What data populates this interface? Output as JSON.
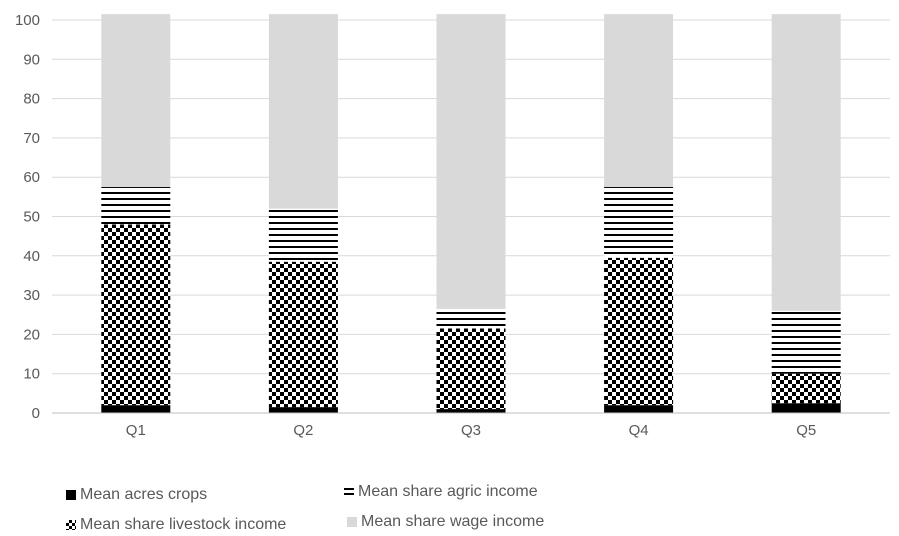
{
  "chart_data": {
    "type": "bar",
    "stacked": true,
    "categories": [
      "Q1",
      "Q2",
      "Q3",
      "Q4",
      "Q5"
    ],
    "ylim": [
      0,
      100
    ],
    "yticks": [
      0,
      10,
      20,
      30,
      40,
      50,
      60,
      70,
      80,
      90,
      100
    ],
    "grid": true,
    "legend_position": "bottom",
    "series": [
      {
        "name": "Mean acres crops",
        "values": [
          2,
          1.5,
          1,
          2,
          2.5
        ],
        "pattern": "solid-black"
      },
      {
        "name": "Mean share livestock income",
        "values": [
          46,
          37,
          20.5,
          37.5,
          7.5
        ],
        "pattern": "checkerboard"
      },
      {
        "name": "Mean share agric income",
        "values": [
          9.5,
          13.5,
          5,
          18,
          16
        ],
        "pattern": "horizontal-lines"
      },
      {
        "name": "Mean share wage income",
        "values": [
          44,
          49.5,
          75,
          44,
          75.5
        ],
        "pattern": "solid-lightgray"
      }
    ],
    "colors": {
      "gray": "#d9d9d9",
      "black": "#000000",
      "grid": "#d9d9d9",
      "axis": "#bfbfbf"
    }
  }
}
